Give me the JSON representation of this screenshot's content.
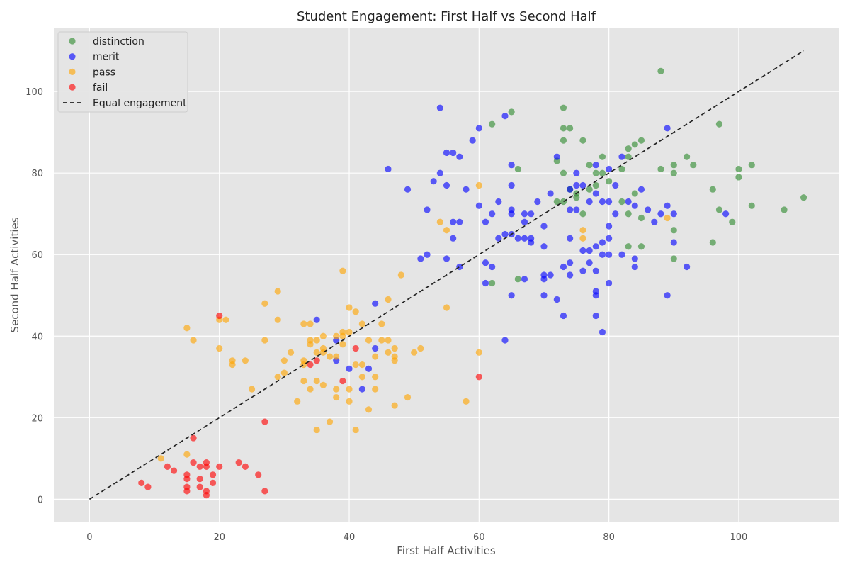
{
  "chart_data": {
    "type": "scatter",
    "title": "Student Engagement: First Half vs Second Half",
    "xlabel": "First Half Activities",
    "ylabel": "Second Half Activities",
    "xlim": [
      -5.5,
      115.5
    ],
    "ylim": [
      -5.5,
      115.5
    ],
    "xticks": [
      0,
      20,
      40,
      60,
      80,
      100
    ],
    "yticks": [
      0,
      20,
      40,
      60,
      80,
      100
    ],
    "grid": true,
    "legend": "top-left",
    "reference_line": {
      "name": "Equal engagement",
      "x": [
        0,
        110
      ],
      "y": [
        0,
        110
      ],
      "color": "#222222",
      "style": "dashed"
    },
    "series": [
      {
        "name": "distinction",
        "color": "#2e8b2e",
        "points": [
          [
            88,
            105
          ],
          [
            73,
            96
          ],
          [
            65,
            95
          ],
          [
            97,
            92
          ],
          [
            62,
            92
          ],
          [
            73,
            91
          ],
          [
            74,
            91
          ],
          [
            73,
            88
          ],
          [
            76,
            88
          ],
          [
            85,
            88
          ],
          [
            84,
            87
          ],
          [
            83,
            86
          ],
          [
            79,
            84
          ],
          [
            83,
            84
          ],
          [
            92,
            84
          ],
          [
            72,
            83
          ],
          [
            77,
            82
          ],
          [
            90,
            82
          ],
          [
            93,
            82
          ],
          [
            102,
            82
          ],
          [
            66,
            81
          ],
          [
            82,
            81
          ],
          [
            88,
            81
          ],
          [
            100,
            81
          ],
          [
            73,
            80
          ],
          [
            78,
            80
          ],
          [
            79,
            80
          ],
          [
            90,
            80
          ],
          [
            100,
            79
          ],
          [
            80,
            78
          ],
          [
            78,
            77
          ],
          [
            74,
            76
          ],
          [
            77,
            76
          ],
          [
            96,
            76
          ],
          [
            75,
            75
          ],
          [
            84,
            75
          ],
          [
            75,
            74
          ],
          [
            110,
            74
          ],
          [
            72,
            73
          ],
          [
            73,
            73
          ],
          [
            82,
            73
          ],
          [
            102,
            72
          ],
          [
            97,
            71
          ],
          [
            107,
            71
          ],
          [
            76,
            70
          ],
          [
            83,
            70
          ],
          [
            85,
            69
          ],
          [
            99,
            68
          ],
          [
            90,
            66
          ],
          [
            96,
            63
          ],
          [
            83,
            62
          ],
          [
            85,
            62
          ],
          [
            90,
            59
          ],
          [
            66,
            54
          ],
          [
            62,
            53
          ]
        ]
      },
      {
        "name": "merit",
        "color": "#0000ff",
        "points": [
          [
            54,
            96
          ],
          [
            64,
            94
          ],
          [
            60,
            91
          ],
          [
            89,
            91
          ],
          [
            59,
            88
          ],
          [
            55,
            85
          ],
          [
            56,
            85
          ],
          [
            57,
            84
          ],
          [
            72,
            84
          ],
          [
            82,
            84
          ],
          [
            65,
            82
          ],
          [
            78,
            82
          ],
          [
            46,
            81
          ],
          [
            80,
            81
          ],
          [
            54,
            80
          ],
          [
            75,
            80
          ],
          [
            53,
            78
          ],
          [
            55,
            77
          ],
          [
            65,
            77
          ],
          [
            75,
            77
          ],
          [
            76,
            77
          ],
          [
            81,
            77
          ],
          [
            49,
            76
          ],
          [
            58,
            76
          ],
          [
            74,
            76
          ],
          [
            85,
            76
          ],
          [
            71,
            75
          ],
          [
            78,
            75
          ],
          [
            65,
            71
          ],
          [
            74,
            71
          ],
          [
            75,
            71
          ],
          [
            52,
            71
          ],
          [
            86,
            71
          ],
          [
            65,
            70
          ],
          [
            68,
            70
          ],
          [
            62,
            70
          ],
          [
            67,
            70
          ],
          [
            81,
            70
          ],
          [
            88,
            70
          ],
          [
            90,
            70
          ],
          [
            98,
            70
          ],
          [
            63,
            73
          ],
          [
            69,
            73
          ],
          [
            77,
            73
          ],
          [
            79,
            73
          ],
          [
            80,
            73
          ],
          [
            83,
            73
          ],
          [
            60,
            72
          ],
          [
            84,
            72
          ],
          [
            89,
            72
          ],
          [
            61,
            68
          ],
          [
            67,
            68
          ],
          [
            56,
            68
          ],
          [
            57,
            68
          ],
          [
            87,
            68
          ],
          [
            80,
            67
          ],
          [
            70,
            67
          ],
          [
            66,
            64
          ],
          [
            67,
            64
          ],
          [
            68,
            64
          ],
          [
            56,
            64
          ],
          [
            63,
            64
          ],
          [
            74,
            64
          ],
          [
            80,
            64
          ],
          [
            64,
            65
          ],
          [
            65,
            65
          ],
          [
            68,
            63
          ],
          [
            70,
            62
          ],
          [
            78,
            62
          ],
          [
            79,
            63
          ],
          [
            90,
            63
          ],
          [
            76,
            61
          ],
          [
            77,
            61
          ],
          [
            79,
            60
          ],
          [
            80,
            60
          ],
          [
            82,
            60
          ],
          [
            52,
            60
          ],
          [
            51,
            59
          ],
          [
            55,
            59
          ],
          [
            84,
            59
          ],
          [
            61,
            58
          ],
          [
            74,
            58
          ],
          [
            77,
            58
          ],
          [
            57,
            57
          ],
          [
            62,
            57
          ],
          [
            73,
            57
          ],
          [
            84,
            57
          ],
          [
            92,
            57
          ],
          [
            76,
            56
          ],
          [
            78,
            56
          ],
          [
            70,
            55
          ],
          [
            71,
            55
          ],
          [
            74,
            55
          ],
          [
            70,
            54
          ],
          [
            67,
            54
          ],
          [
            80,
            53
          ],
          [
            61,
            53
          ],
          [
            78,
            51
          ],
          [
            65,
            50
          ],
          [
            70,
            50
          ],
          [
            78,
            50
          ],
          [
            89,
            50
          ],
          [
            72,
            49
          ],
          [
            44,
            48
          ],
          [
            73,
            45
          ],
          [
            78,
            45
          ],
          [
            35,
            44
          ],
          [
            79,
            41
          ],
          [
            64,
            39
          ],
          [
            38,
            39
          ],
          [
            44,
            37
          ],
          [
            38,
            34
          ],
          [
            40,
            32
          ],
          [
            43,
            32
          ],
          [
            42,
            27
          ]
        ]
      },
      {
        "name": "pass",
        "color": "#ffa500",
        "points": [
          [
            60,
            77
          ],
          [
            54,
            68
          ],
          [
            55,
            66
          ],
          [
            76,
            66
          ],
          [
            76,
            64
          ],
          [
            89,
            69
          ],
          [
            39,
            56
          ],
          [
            48,
            55
          ],
          [
            29,
            51
          ],
          [
            46,
            49
          ],
          [
            27,
            48
          ],
          [
            55,
            47
          ],
          [
            40,
            47
          ],
          [
            41,
            46
          ],
          [
            15,
            42
          ],
          [
            20,
            44
          ],
          [
            21,
            44
          ],
          [
            29,
            44
          ],
          [
            33,
            43
          ],
          [
            34,
            43
          ],
          [
            42,
            43
          ],
          [
            45,
            43
          ],
          [
            36,
            40
          ],
          [
            38,
            40
          ],
          [
            39,
            41
          ],
          [
            40,
            41
          ],
          [
            39,
            40
          ],
          [
            16,
            39
          ],
          [
            27,
            39
          ],
          [
            34,
            39
          ],
          [
            35,
            39
          ],
          [
            43,
            39
          ],
          [
            45,
            39
          ],
          [
            46,
            39
          ],
          [
            34,
            38
          ],
          [
            39,
            38
          ],
          [
            47,
            37
          ],
          [
            20,
            37
          ],
          [
            51,
            37
          ],
          [
            36,
            37
          ],
          [
            31,
            36
          ],
          [
            35,
            36
          ],
          [
            37,
            35
          ],
          [
            36,
            36
          ],
          [
            38,
            35
          ],
          [
            44,
            35
          ],
          [
            46,
            36
          ],
          [
            50,
            36
          ],
          [
            60,
            36
          ],
          [
            47,
            35
          ],
          [
            22,
            34
          ],
          [
            24,
            34
          ],
          [
            33,
            34
          ],
          [
            30,
            34
          ],
          [
            47,
            34
          ],
          [
            22,
            33
          ],
          [
            33,
            33
          ],
          [
            41,
            33
          ],
          [
            42,
            33
          ],
          [
            30,
            31
          ],
          [
            29,
            30
          ],
          [
            42,
            30
          ],
          [
            44,
            30
          ],
          [
            33,
            29
          ],
          [
            35,
            29
          ],
          [
            36,
            28
          ],
          [
            25,
            27
          ],
          [
            34,
            27
          ],
          [
            38,
            27
          ],
          [
            40,
            27
          ],
          [
            44,
            27
          ],
          [
            38,
            25
          ],
          [
            49,
            25
          ],
          [
            32,
            24
          ],
          [
            40,
            24
          ],
          [
            58,
            24
          ],
          [
            47,
            23
          ],
          [
            43,
            22
          ],
          [
            37,
            19
          ],
          [
            35,
            17
          ],
          [
            41,
            17
          ],
          [
            15,
            11
          ],
          [
            11,
            10
          ]
        ]
      },
      {
        "name": "fail",
        "color": "#ff0000",
        "points": [
          [
            20,
            45
          ],
          [
            41,
            37
          ],
          [
            35,
            34
          ],
          [
            34,
            33
          ],
          [
            39,
            29
          ],
          [
            60,
            30
          ],
          [
            27,
            19
          ],
          [
            16,
            15
          ],
          [
            16,
            9
          ],
          [
            18,
            9
          ],
          [
            23,
            9
          ],
          [
            17,
            8
          ],
          [
            18,
            8
          ],
          [
            20,
            8
          ],
          [
            12,
            8
          ],
          [
            24,
            8
          ],
          [
            13,
            7
          ],
          [
            15,
            6
          ],
          [
            19,
            6
          ],
          [
            26,
            6
          ],
          [
            15,
            5
          ],
          [
            17,
            5
          ],
          [
            8,
            4
          ],
          [
            19,
            4
          ],
          [
            9,
            3
          ],
          [
            15,
            3
          ],
          [
            17,
            3
          ],
          [
            15,
            2
          ],
          [
            18,
            2
          ],
          [
            27,
            2
          ],
          [
            18,
            1
          ]
        ]
      }
    ]
  }
}
